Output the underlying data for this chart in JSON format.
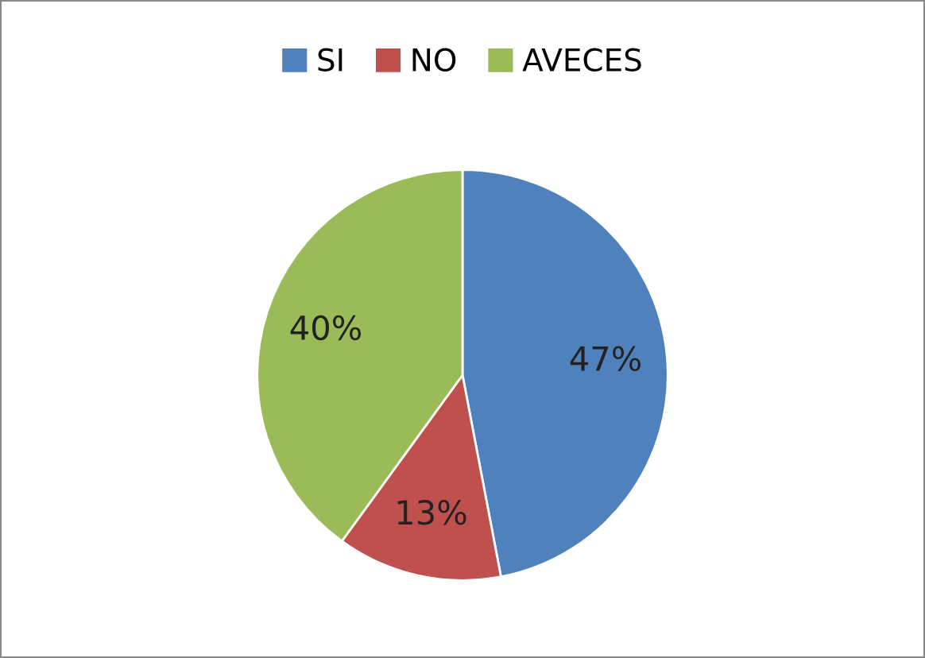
{
  "chart_data": {
    "type": "pie",
    "categories": [
      "SI",
      "NO",
      "AVECES"
    ],
    "values": [
      47,
      13,
      40
    ],
    "colors": [
      "#4f81bd",
      "#c0504d",
      "#9bbb59"
    ],
    "value_labels": [
      "47%",
      "13%",
      "40%"
    ],
    "legend": "top"
  }
}
